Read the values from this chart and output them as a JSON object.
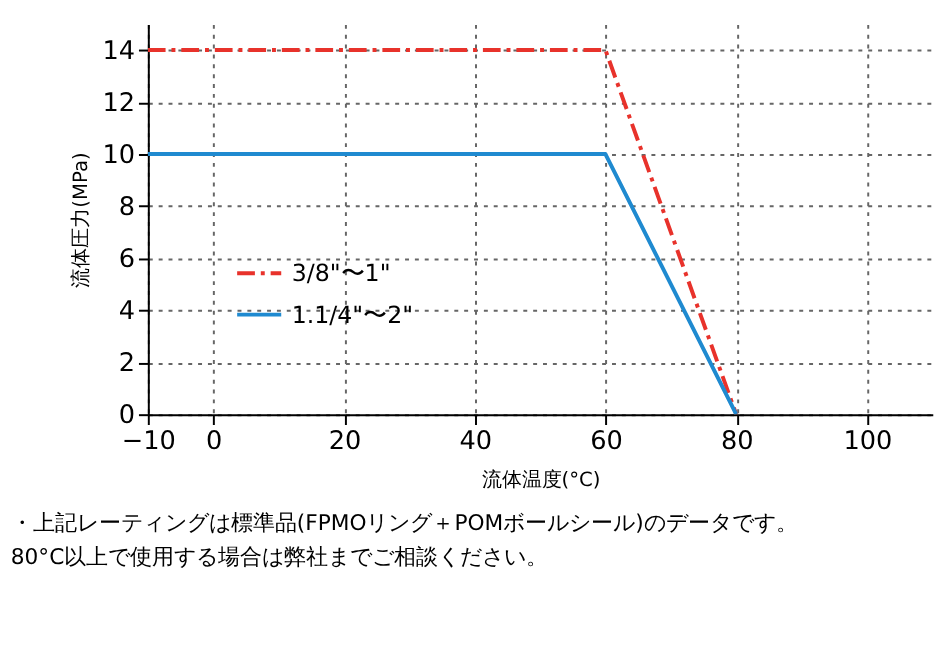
{
  "chart_data": {
    "type": "line",
    "xlabel": "流体温度(°C)",
    "ylabel": "流体圧力(MPa)",
    "series": [
      {
        "name": "3/8\"〜1\"",
        "color": "#e8322b",
        "line_style": "dashed",
        "x": [
          -10,
          60,
          80
        ],
        "values": [
          14,
          14,
          0
        ]
      },
      {
        "name": "1.1/4\"〜2\"",
        "color": "#1f8ad0",
        "line_style": "solid",
        "x": [
          -10,
          60,
          80
        ],
        "values": [
          10,
          10,
          0
        ]
      }
    ],
    "xlim": [
      -10,
      110
    ],
    "xticks": [
      -10,
      0,
      20,
      40,
      60,
      80,
      100
    ],
    "ylim": [
      0,
      15
    ],
    "yticks": [
      0,
      2,
      4,
      6,
      8,
      10,
      12,
      14
    ],
    "grid": true,
    "legend": "bottom left",
    "marker": "none",
    "annotations": [
      "・上記レーティングは標準品(FPMOリング＋POMボールシール)のデータです。",
      "80°C以上で使用する場合は弊社までご相談ください。"
    ]
  }
}
